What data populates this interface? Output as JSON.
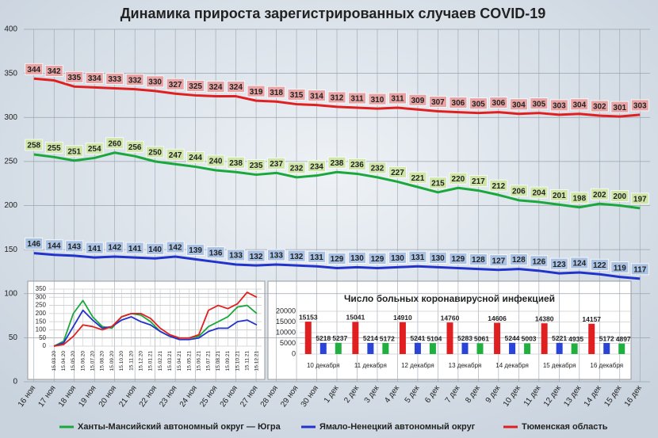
{
  "chart_data": [
    {
      "type": "line",
      "title": "Динамика прироста зарегистрированных случаев COVID-19",
      "categories": [
        "16 ноя",
        "17 ноя",
        "18 ноя",
        "19 ноя",
        "20 ноя",
        "21 ноя",
        "22 ноя",
        "23 ноя",
        "24 ноя",
        "25 ноя",
        "26 ноя",
        "27 ноя",
        "28 ноя",
        "29 ноя",
        "30 ноя",
        "1 дек",
        "2 дек",
        "3 дек",
        "4 дек",
        "5 дек",
        "6 дек",
        "7 дек",
        "8 дек",
        "9 дек",
        "10 дек",
        "11 дек",
        "12 дек",
        "13 дек",
        "14 дек",
        "15 дек",
        "16 дек"
      ],
      "series": [
        {
          "name": "Ханты-Мансийский автономный округ — Югра",
          "color": "#1aa83c",
          "label_color": "#cfe6a8",
          "values": [
            258,
            255,
            251,
            254,
            260,
            256,
            250,
            247,
            244,
            240,
            238,
            235,
            237,
            232,
            234,
            238,
            236,
            232,
            227,
            221,
            215,
            220,
            217,
            212,
            206,
            204,
            201,
            198,
            202,
            200,
            197
          ]
        },
        {
          "name": "Ямало-Ненецкий автономный округ",
          "color": "#2233cc",
          "label_color": "#a9c1e3",
          "values": [
            146,
            144,
            143,
            141,
            142,
            141,
            140,
            142,
            139,
            136,
            133,
            132,
            133,
            132,
            131,
            129,
            130,
            129,
            130,
            131,
            130,
            129,
            128,
            127,
            128,
            126,
            123,
            124,
            122,
            119,
            117
          ]
        },
        {
          "name": "Тюменская область",
          "color": "#e02020",
          "label_color": "#e8a4a4",
          "values": [
            344,
            342,
            335,
            334,
            333,
            332,
            330,
            327,
            325,
            324,
            324,
            319,
            318,
            315,
            314,
            312,
            311,
            310,
            311,
            309,
            307,
            306,
            305,
            306,
            304,
            305,
            303,
            304,
            302,
            301,
            303
          ]
        }
      ],
      "ylim": [
        0,
        400
      ],
      "yticks": [
        0,
        50,
        100,
        150,
        200,
        250,
        300,
        350,
        400
      ],
      "grid": true,
      "data_labels": true,
      "legend": "bottom"
    },
    {
      "type": "line",
      "categories": [
        "15.03.20",
        "15.04.20",
        "15.05.20",
        "15.06.20",
        "15.07.20",
        "15.08.20",
        "15.09.20",
        "15.10.20",
        "15.11.20",
        "15.12.20",
        "15.01.21",
        "15.02.21",
        "15.03.21",
        "15.04.21",
        "15.05.21",
        "15.06.21",
        "15.07.21",
        "15.08.21",
        "15.09.21",
        "15.10.21",
        "15.11.21",
        "15.12.21"
      ],
      "series": [
        {
          "color": "#1aa83c",
          "values": [
            0,
            30,
            200,
            280,
            180,
            120,
            110,
            180,
            200,
            190,
            150,
            90,
            60,
            50,
            50,
            60,
            120,
            150,
            180,
            240,
            250,
            200
          ]
        },
        {
          "color": "#2233cc",
          "values": [
            0,
            20,
            120,
            220,
            160,
            110,
            120,
            160,
            180,
            150,
            130,
            90,
            60,
            40,
            40,
            50,
            90,
            110,
            110,
            150,
            160,
            130
          ]
        },
        {
          "color": "#e02020",
          "values": [
            0,
            10,
            60,
            130,
            120,
            100,
            120,
            180,
            200,
            200,
            170,
            110,
            70,
            50,
            50,
            70,
            220,
            250,
            230,
            260,
            330,
            300
          ]
        }
      ],
      "ylim": [
        0,
        350
      ],
      "yticks": [
        0,
        50,
        100,
        150,
        200,
        250,
        300,
        350
      ],
      "grid": true
    },
    {
      "type": "bar",
      "title": "Число больных коронавирусной инфекцией",
      "categories": [
        "10 декабря",
        "11 декабря",
        "12 декабря",
        "13 декабря",
        "14 декабря",
        "15 декабря",
        "16 декабря"
      ],
      "series": [
        {
          "color": "#e02020",
          "values": [
            15153,
            15041,
            14910,
            14760,
            14606,
            14380,
            14157
          ]
        },
        {
          "color": "#2a44d8",
          "values": [
            5218,
            5214,
            5241,
            5283,
            5244,
            5221,
            5172
          ]
        },
        {
          "color": "#20b040",
          "values": [
            5237,
            5172,
            5104,
            5061,
            5003,
            4935,
            4897
          ]
        }
      ],
      "ylim": [
        0,
        20000
      ],
      "yticks": [
        0,
        5000,
        10000,
        15000,
        20000
      ],
      "grid": true,
      "data_labels": true
    }
  ]
}
